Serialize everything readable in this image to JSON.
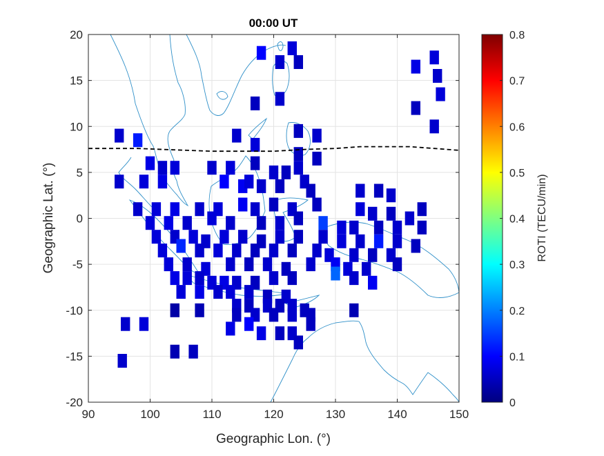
{
  "chart_data": {
    "type": "heatmap",
    "title": "00:00 UT",
    "xlabel": "Geographic Lon. (°)",
    "ylabel": "Geographic Lat. (°)",
    "xlim": [
      90,
      150
    ],
    "ylim": [
      -20,
      20
    ],
    "x_ticks": [
      "90",
      "100",
      "110",
      "120",
      "130",
      "140",
      "150"
    ],
    "y_ticks": [
      "20",
      "15",
      "10",
      "5",
      "0",
      "-5",
      "-10",
      "-15",
      "-20"
    ],
    "grid": true,
    "colorbar": {
      "label": "ROTI (TECU/min)",
      "min": 0,
      "max": 0.8,
      "ticks": [
        "0.8",
        "0.7",
        "0.6",
        "0.5",
        "0.4",
        "0.3",
        "0.2",
        "0.1",
        "0"
      ]
    },
    "magnetic_equator": [
      [
        90,
        7.6
      ],
      [
        98,
        7.6
      ],
      [
        102,
        7.5
      ],
      [
        106,
        7.4
      ],
      [
        110,
        7.3
      ],
      [
        115,
        7.3
      ],
      [
        120,
        7.3
      ],
      [
        125,
        7.5
      ],
      [
        130,
        7.6
      ],
      [
        134,
        7.8
      ],
      [
        138,
        7.8
      ],
      [
        142,
        7.8
      ],
      [
        146,
        7.6
      ],
      [
        150,
        7.4
      ]
    ],
    "cells": [
      {
        "lon": 95,
        "lat": 9,
        "roti": 0.06
      },
      {
        "lon": 98,
        "lat": 8.5,
        "roti": 0.12
      },
      {
        "lon": 118,
        "lat": 18,
        "roti": 0.1
      },
      {
        "lon": 123,
        "lat": 18.5,
        "roti": 0.07
      },
      {
        "lon": 121,
        "lat": 17,
        "roti": 0.06
      },
      {
        "lon": 124,
        "lat": 17,
        "roti": 0.05
      },
      {
        "lon": 146,
        "lat": 17.5,
        "roti": 0.07
      },
      {
        "lon": 143,
        "lat": 16.5,
        "roti": 0.08
      },
      {
        "lon": 146.5,
        "lat": 15.5,
        "roti": 0.06
      },
      {
        "lon": 147,
        "lat": 13.5,
        "roti": 0.07
      },
      {
        "lon": 117,
        "lat": 12.5,
        "roti": 0.05
      },
      {
        "lon": 121,
        "lat": 13,
        "roti": 0.06
      },
      {
        "lon": 143,
        "lat": 12,
        "roti": 0.05
      },
      {
        "lon": 146,
        "lat": 10,
        "roti": 0.06
      },
      {
        "lon": 124,
        "lat": 9.5,
        "roti": 0.05
      },
      {
        "lon": 114,
        "lat": 9,
        "roti": 0.06
      },
      {
        "lon": 117,
        "lat": 8,
        "roti": 0.07
      },
      {
        "lon": 127,
        "lat": 9,
        "roti": 0.06
      },
      {
        "lon": 124,
        "lat": 7,
        "roti": 0.05
      },
      {
        "lon": 127,
        "lat": 6.5,
        "roti": 0.05
      },
      {
        "lon": 100,
        "lat": 6,
        "roti": 0.08
      },
      {
        "lon": 102,
        "lat": 5.5,
        "roti": 0.06
      },
      {
        "lon": 104,
        "lat": 5.5,
        "roti": 0.07
      },
      {
        "lon": 110,
        "lat": 5.5,
        "roti": 0.06
      },
      {
        "lon": 113,
        "lat": 5.5,
        "roti": 0.07
      },
      {
        "lon": 117,
        "lat": 6,
        "roti": 0.05
      },
      {
        "lon": 120,
        "lat": 5,
        "roti": 0.06
      },
      {
        "lon": 122,
        "lat": 5,
        "roti": 0.05
      },
      {
        "lon": 124,
        "lat": 5.5,
        "roti": 0.06
      },
      {
        "lon": 95,
        "lat": 4,
        "roti": 0.06
      },
      {
        "lon": 99,
        "lat": 4,
        "roti": 0.07
      },
      {
        "lon": 102,
        "lat": 4,
        "roti": 0.08
      },
      {
        "lon": 112,
        "lat": 4,
        "roti": 0.1
      },
      {
        "lon": 115,
        "lat": 3.5,
        "roti": 0.09
      },
      {
        "lon": 116,
        "lat": 4,
        "roti": 0.07
      },
      {
        "lon": 118,
        "lat": 3.5,
        "roti": 0.06
      },
      {
        "lon": 121,
        "lat": 3.5,
        "roti": 0.05
      },
      {
        "lon": 125,
        "lat": 4,
        "roti": 0.06
      },
      {
        "lon": 126,
        "lat": 3,
        "roti": 0.05
      },
      {
        "lon": 134,
        "lat": 3,
        "roti": 0.06
      },
      {
        "lon": 137,
        "lat": 3,
        "roti": 0.05
      },
      {
        "lon": 139,
        "lat": 2.5,
        "roti": 0.06
      },
      {
        "lon": 98,
        "lat": 1,
        "roti": 0.06
      },
      {
        "lon": 101,
        "lat": 1,
        "roti": 0.07
      },
      {
        "lon": 104,
        "lat": 1,
        "roti": 0.08
      },
      {
        "lon": 108,
        "lat": 1,
        "roti": 0.06
      },
      {
        "lon": 111,
        "lat": 1,
        "roti": 0.07
      },
      {
        "lon": 115,
        "lat": 1.5,
        "roti": 0.09
      },
      {
        "lon": 117,
        "lat": 1,
        "roti": 0.06
      },
      {
        "lon": 120,
        "lat": 1.5,
        "roti": 0.05
      },
      {
        "lon": 123,
        "lat": 1,
        "roti": 0.06
      },
      {
        "lon": 127,
        "lat": 1.5,
        "roti": 0.05
      },
      {
        "lon": 134,
        "lat": 1,
        "roti": 0.07
      },
      {
        "lon": 136,
        "lat": 0.5,
        "roti": 0.06
      },
      {
        "lon": 139,
        "lat": 0.5,
        "roti": 0.05
      },
      {
        "lon": 142,
        "lat": 0,
        "roti": 0.06
      },
      {
        "lon": 144,
        "lat": 1,
        "roti": 0.05
      },
      {
        "lon": 100,
        "lat": -0.5,
        "roti": 0.07
      },
      {
        "lon": 103,
        "lat": -0.5,
        "roti": 0.08
      },
      {
        "lon": 106,
        "lat": -0.5,
        "roti": 0.06
      },
      {
        "lon": 110,
        "lat": 0,
        "roti": 0.07
      },
      {
        "lon": 113,
        "lat": -0.5,
        "roti": 0.06
      },
      {
        "lon": 118,
        "lat": -0.5,
        "roti": 0.05
      },
      {
        "lon": 121,
        "lat": -0.5,
        "roti": 0.06
      },
      {
        "lon": 124,
        "lat": 0,
        "roti": 0.05
      },
      {
        "lon": 128,
        "lat": -0.5,
        "roti": 0.15
      },
      {
        "lon": 131,
        "lat": -1,
        "roti": 0.07
      },
      {
        "lon": 133,
        "lat": -1,
        "roti": 0.06
      },
      {
        "lon": 137,
        "lat": -1,
        "roti": 0.05
      },
      {
        "lon": 140,
        "lat": -1,
        "roti": 0.06
      },
      {
        "lon": 144,
        "lat": -1,
        "roti": 0.05
      },
      {
        "lon": 101,
        "lat": -2,
        "roti": 0.07
      },
      {
        "lon": 104,
        "lat": -2,
        "roti": 0.06
      },
      {
        "lon": 107,
        "lat": -2,
        "roti": 0.07
      },
      {
        "lon": 109,
        "lat": -2.5,
        "roti": 0.06
      },
      {
        "lon": 112,
        "lat": -2,
        "roti": 0.07
      },
      {
        "lon": 115,
        "lat": -2,
        "roti": 0.06
      },
      {
        "lon": 118,
        "lat": -2.5,
        "roti": 0.05
      },
      {
        "lon": 121,
        "lat": -2,
        "roti": 0.06
      },
      {
        "lon": 124,
        "lat": -2,
        "roti": 0.05
      },
      {
        "lon": 128,
        "lat": -2,
        "roti": 0.06
      },
      {
        "lon": 131,
        "lat": -2.5,
        "roti": 0.07
      },
      {
        "lon": 134,
        "lat": -2.5,
        "roti": 0.06
      },
      {
        "lon": 137,
        "lat": -2.5,
        "roti": 0.12
      },
      {
        "lon": 140,
        "lat": -2.5,
        "roti": 0.06
      },
      {
        "lon": 143,
        "lat": -3,
        "roti": 0.05
      },
      {
        "lon": 102,
        "lat": -3.5,
        "roti": 0.07
      },
      {
        "lon": 105,
        "lat": -3,
        "roti": 0.13
      },
      {
        "lon": 108,
        "lat": -3.5,
        "roti": 0.06
      },
      {
        "lon": 111,
        "lat": -3.5,
        "roti": 0.07
      },
      {
        "lon": 114,
        "lat": -3.5,
        "roti": 0.06
      },
      {
        "lon": 117,
        "lat": -3.5,
        "roti": 0.05
      },
      {
        "lon": 120,
        "lat": -3.5,
        "roti": 0.06
      },
      {
        "lon": 123,
        "lat": -3.5,
        "roti": 0.05
      },
      {
        "lon": 127,
        "lat": -3.5,
        "roti": 0.06
      },
      {
        "lon": 129,
        "lat": -4,
        "roti": 0.07
      },
      {
        "lon": 133,
        "lat": -4,
        "roti": 0.06
      },
      {
        "lon": 136,
        "lat": -4,
        "roti": 0.05
      },
      {
        "lon": 139,
        "lat": -4,
        "roti": 0.06
      },
      {
        "lon": 103,
        "lat": -5,
        "roti": 0.07
      },
      {
        "lon": 106,
        "lat": -5,
        "roti": 0.06
      },
      {
        "lon": 109,
        "lat": -5.5,
        "roti": 0.07
      },
      {
        "lon": 113,
        "lat": -5,
        "roti": 0.06
      },
      {
        "lon": 116,
        "lat": -5,
        "roti": 0.05
      },
      {
        "lon": 119,
        "lat": -5,
        "roti": 0.06
      },
      {
        "lon": 122,
        "lat": -5.5,
        "roti": 0.05
      },
      {
        "lon": 126,
        "lat": -5,
        "roti": 0.06
      },
      {
        "lon": 130,
        "lat": -5,
        "roti": 0.09
      },
      {
        "lon": 132,
        "lat": -5.5,
        "roti": 0.07
      },
      {
        "lon": 135,
        "lat": -5.5,
        "roti": 0.06
      },
      {
        "lon": 140,
        "lat": -5,
        "roti": 0.05
      },
      {
        "lon": 104,
        "lat": -6.5,
        "roti": 0.08
      },
      {
        "lon": 106,
        "lat": -6.5,
        "roti": 0.07
      },
      {
        "lon": 108,
        "lat": -6.5,
        "roti": 0.06
      },
      {
        "lon": 110,
        "lat": -7,
        "roti": 0.07
      },
      {
        "lon": 112,
        "lat": -7,
        "roti": 0.08
      },
      {
        "lon": 114,
        "lat": -7,
        "roti": 0.06
      },
      {
        "lon": 117,
        "lat": -7,
        "roti": 0.05
      },
      {
        "lon": 120,
        "lat": -6.5,
        "roti": 0.06
      },
      {
        "lon": 123,
        "lat": -6.5,
        "roti": 0.05
      },
      {
        "lon": 130,
        "lat": -6,
        "roti": 0.18
      },
      {
        "lon": 133,
        "lat": -6.5,
        "roti": 0.06
      },
      {
        "lon": 136,
        "lat": -7,
        "roti": 0.09
      },
      {
        "lon": 105,
        "lat": -8,
        "roti": 0.07
      },
      {
        "lon": 108,
        "lat": -8,
        "roti": 0.08
      },
      {
        "lon": 111,
        "lat": -8,
        "roti": 0.06
      },
      {
        "lon": 113,
        "lat": -8,
        "roti": 0.07
      },
      {
        "lon": 116,
        "lat": -8,
        "roti": 0.06
      },
      {
        "lon": 119,
        "lat": -8.5,
        "roti": 0.05
      },
      {
        "lon": 122,
        "lat": -8.5,
        "roti": 0.06
      },
      {
        "lon": 114,
        "lat": -9.5,
        "roti": 0.06
      },
      {
        "lon": 116,
        "lat": -9.5,
        "roti": 0.05
      },
      {
        "lon": 119,
        "lat": -9.5,
        "roti": 0.06
      },
      {
        "lon": 121,
        "lat": -9.5,
        "roti": 0.05
      },
      {
        "lon": 123,
        "lat": -9.5,
        "roti": 0.06
      },
      {
        "lon": 125,
        "lat": -10,
        "roti": 0.05
      },
      {
        "lon": 104,
        "lat": -10,
        "roti": 0.03
      },
      {
        "lon": 108,
        "lat": -10,
        "roti": 0.04
      },
      {
        "lon": 114,
        "lat": -10.5,
        "roti": 0.05
      },
      {
        "lon": 117,
        "lat": -10.5,
        "roti": 0.06
      },
      {
        "lon": 120,
        "lat": -10.5,
        "roti": 0.05
      },
      {
        "lon": 123,
        "lat": -10.5,
        "roti": 0.06
      },
      {
        "lon": 126,
        "lat": -10.5,
        "roti": 0.05
      },
      {
        "lon": 133,
        "lat": -10,
        "roti": 0.04
      },
      {
        "lon": 96,
        "lat": -11.5,
        "roti": 0.06
      },
      {
        "lon": 99,
        "lat": -11.5,
        "roti": 0.07
      },
      {
        "lon": 113,
        "lat": -12,
        "roti": 0.08
      },
      {
        "lon": 116,
        "lat": -11.5,
        "roti": 0.1
      },
      {
        "lon": 118,
        "lat": -12.5,
        "roti": 0.08
      },
      {
        "lon": 121,
        "lat": -12.5,
        "roti": 0.05
      },
      {
        "lon": 123,
        "lat": -12.5,
        "roti": 0.06
      },
      {
        "lon": 126,
        "lat": -11.5,
        "roti": 0.05
      },
      {
        "lon": 124,
        "lat": -13.5,
        "roti": 0.05
      },
      {
        "lon": 104,
        "lat": -14.5,
        "roti": 0.04
      },
      {
        "lon": 107,
        "lat": -14.5,
        "roti": 0.05
      },
      {
        "lon": 95.5,
        "lat": -15.5,
        "roti": 0.06
      }
    ]
  }
}
